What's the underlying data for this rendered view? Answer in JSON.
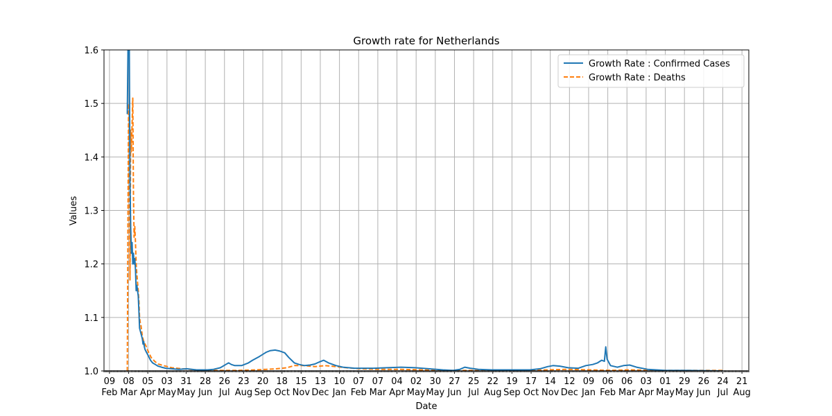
{
  "chart_data": {
    "type": "line",
    "title": "Growth rate for Netherlands",
    "xlabel": "Date",
    "ylabel": "Values",
    "ylim": [
      1.0,
      1.6
    ],
    "yticks": [
      "1.0",
      "1.1",
      "1.2",
      "1.3",
      "1.4",
      "1.5",
      "1.6"
    ],
    "xlim": [
      "2020-02-01",
      "2022-08-31"
    ],
    "xticks": [
      {
        "date": "2020-02-09",
        "day": "09",
        "month": "Feb"
      },
      {
        "date": "2020-03-08",
        "day": "08",
        "month": "Mar"
      },
      {
        "date": "2020-04-05",
        "day": "05",
        "month": "Apr"
      },
      {
        "date": "2020-05-03",
        "day": "03",
        "month": "May"
      },
      {
        "date": "2020-05-31",
        "day": "31",
        "month": "May"
      },
      {
        "date": "2020-06-28",
        "day": "28",
        "month": "Jun"
      },
      {
        "date": "2020-07-26",
        "day": "26",
        "month": "Jul"
      },
      {
        "date": "2020-08-23",
        "day": "23",
        "month": "Aug"
      },
      {
        "date": "2020-09-20",
        "day": "20",
        "month": "Sep"
      },
      {
        "date": "2020-10-18",
        "day": "18",
        "month": "Oct"
      },
      {
        "date": "2020-11-15",
        "day": "15",
        "month": "Nov"
      },
      {
        "date": "2020-12-13",
        "day": "13",
        "month": "Dec"
      },
      {
        "date": "2021-01-10",
        "day": "10",
        "month": "Jan"
      },
      {
        "date": "2021-02-07",
        "day": "07",
        "month": "Feb"
      },
      {
        "date": "2021-03-07",
        "day": "07",
        "month": "Mar"
      },
      {
        "date": "2021-04-04",
        "day": "04",
        "month": "Apr"
      },
      {
        "date": "2021-05-02",
        "day": "02",
        "month": "May"
      },
      {
        "date": "2021-05-30",
        "day": "30",
        "month": "May"
      },
      {
        "date": "2021-06-27",
        "day": "27",
        "month": "Jun"
      },
      {
        "date": "2021-07-25",
        "day": "25",
        "month": "Jul"
      },
      {
        "date": "2021-08-22",
        "day": "22",
        "month": "Aug"
      },
      {
        "date": "2021-09-19",
        "day": "19",
        "month": "Sep"
      },
      {
        "date": "2021-10-17",
        "day": "17",
        "month": "Oct"
      },
      {
        "date": "2021-11-14",
        "day": "14",
        "month": "Nov"
      },
      {
        "date": "2021-12-12",
        "day": "12",
        "month": "Dec"
      },
      {
        "date": "2022-01-09",
        "day": "09",
        "month": "Jan"
      },
      {
        "date": "2022-02-06",
        "day": "06",
        "month": "Feb"
      },
      {
        "date": "2022-03-06",
        "day": "06",
        "month": "Mar"
      },
      {
        "date": "2022-04-03",
        "day": "03",
        "month": "Apr"
      },
      {
        "date": "2022-05-01",
        "day": "01",
        "month": "May"
      },
      {
        "date": "2022-05-29",
        "day": "29",
        "month": "May"
      },
      {
        "date": "2022-06-26",
        "day": "26",
        "month": "Jun"
      },
      {
        "date": "2022-07-24",
        "day": "24",
        "month": "Jul"
      },
      {
        "date": "2022-08-21",
        "day": "21",
        "month": "Aug"
      }
    ],
    "grid": true,
    "legend_position": "top-right",
    "series": [
      {
        "name": "Growth Rate : Confirmed Cases",
        "color": "#1f77b4",
        "style": "solid",
        "points": [
          [
            "2020-03-06",
            1.48
          ],
          [
            "2020-03-07",
            1.6
          ],
          [
            "2020-03-08",
            1.6
          ],
          [
            "2020-03-09",
            1.6
          ],
          [
            "2020-03-10",
            1.35
          ],
          [
            "2020-03-11",
            1.27
          ],
          [
            "2020-03-12",
            1.22
          ],
          [
            "2020-03-13",
            1.24
          ],
          [
            "2020-03-14",
            1.2
          ],
          [
            "2020-03-15",
            1.22
          ],
          [
            "2020-03-16",
            1.2
          ],
          [
            "2020-03-17",
            1.21
          ],
          [
            "2020-03-18",
            1.19
          ],
          [
            "2020-03-19",
            1.15
          ],
          [
            "2020-03-20",
            1.16
          ],
          [
            "2020-03-21",
            1.15
          ],
          [
            "2020-03-22",
            1.14
          ],
          [
            "2020-03-23",
            1.11
          ],
          [
            "2020-03-24",
            1.08
          ],
          [
            "2020-03-25",
            1.075
          ],
          [
            "2020-03-26",
            1.07
          ],
          [
            "2020-03-27",
            1.065
          ],
          [
            "2020-03-28",
            1.06
          ],
          [
            "2020-03-29",
            1.05
          ],
          [
            "2020-03-30",
            1.055
          ],
          [
            "2020-03-31",
            1.045
          ],
          [
            "2020-04-01",
            1.04
          ],
          [
            "2020-04-03",
            1.035
          ],
          [
            "2020-04-05",
            1.03
          ],
          [
            "2020-04-07",
            1.025
          ],
          [
            "2020-04-09",
            1.02
          ],
          [
            "2020-04-12",
            1.015
          ],
          [
            "2020-04-16",
            1.012
          ],
          [
            "2020-04-20",
            1.009
          ],
          [
            "2020-04-25",
            1.007
          ],
          [
            "2020-05-01",
            1.005
          ],
          [
            "2020-05-10",
            1.004
          ],
          [
            "2020-05-20",
            1.003
          ],
          [
            "2020-06-01",
            1.004
          ],
          [
            "2020-06-15",
            1.002
          ],
          [
            "2020-07-01",
            1.002
          ],
          [
            "2020-07-10",
            1.003
          ],
          [
            "2020-07-20",
            1.006
          ],
          [
            "2020-07-28",
            1.012
          ],
          [
            "2020-08-01",
            1.015
          ],
          [
            "2020-08-05",
            1.012
          ],
          [
            "2020-08-10",
            1.01
          ],
          [
            "2020-08-20",
            1.01
          ],
          [
            "2020-08-30",
            1.015
          ],
          [
            "2020-09-05",
            1.02
          ],
          [
            "2020-09-15",
            1.027
          ],
          [
            "2020-09-25",
            1.035
          ],
          [
            "2020-10-01",
            1.038
          ],
          [
            "2020-10-08",
            1.039
          ],
          [
            "2020-10-15",
            1.037
          ],
          [
            "2020-10-22",
            1.034
          ],
          [
            "2020-10-28",
            1.025
          ],
          [
            "2020-11-05",
            1.015
          ],
          [
            "2020-11-12",
            1.012
          ],
          [
            "2020-11-20",
            1.01
          ],
          [
            "2020-11-28",
            1.011
          ],
          [
            "2020-12-05",
            1.013
          ],
          [
            "2020-12-12",
            1.017
          ],
          [
            "2020-12-18",
            1.02
          ],
          [
            "2020-12-25",
            1.015
          ],
          [
            "2021-01-05",
            1.01
          ],
          [
            "2021-01-15",
            1.007
          ],
          [
            "2021-02-01",
            1.005
          ],
          [
            "2021-03-01",
            1.005
          ],
          [
            "2021-03-20",
            1.006
          ],
          [
            "2021-04-10",
            1.007
          ],
          [
            "2021-05-01",
            1.006
          ],
          [
            "2021-05-20",
            1.004
          ],
          [
            "2021-06-10",
            1.002
          ],
          [
            "2021-06-25",
            1.001
          ],
          [
            "2021-07-05",
            1.003
          ],
          [
            "2021-07-12",
            1.007
          ],
          [
            "2021-07-20",
            1.005
          ],
          [
            "2021-08-01",
            1.003
          ],
          [
            "2021-08-20",
            1.002
          ],
          [
            "2021-09-15",
            1.002
          ],
          [
            "2021-10-15",
            1.002
          ],
          [
            "2021-10-30",
            1.004
          ],
          [
            "2021-11-10",
            1.008
          ],
          [
            "2021-11-18",
            1.01
          ],
          [
            "2021-11-28",
            1.009
          ],
          [
            "2021-12-10",
            1.006
          ],
          [
            "2021-12-25",
            1.005
          ],
          [
            "2022-01-05",
            1.01
          ],
          [
            "2022-01-15",
            1.012
          ],
          [
            "2022-01-22",
            1.015
          ],
          [
            "2022-01-28",
            1.02
          ],
          [
            "2022-02-01",
            1.018
          ],
          [
            "2022-02-03",
            1.045
          ],
          [
            "2022-02-05",
            1.022
          ],
          [
            "2022-02-10",
            1.01
          ],
          [
            "2022-02-20",
            1.007
          ],
          [
            "2022-03-01",
            1.01
          ],
          [
            "2022-03-10",
            1.011
          ],
          [
            "2022-03-20",
            1.007
          ],
          [
            "2022-04-05",
            1.003
          ],
          [
            "2022-05-01",
            1.001
          ],
          [
            "2022-06-01",
            1.001
          ],
          [
            "2022-07-24",
            1.0
          ]
        ]
      },
      {
        "name": "Growth Rate : Deaths",
        "color": "#ff7f0e",
        "style": "dashed",
        "points": [
          [
            "2020-03-06",
            1.0
          ],
          [
            "2020-03-07",
            1.3
          ],
          [
            "2020-03-08",
            1.5
          ],
          [
            "2020-03-09",
            1.4
          ],
          [
            "2020-03-10",
            1.17
          ],
          [
            "2020-03-11",
            1.45
          ],
          [
            "2020-03-12",
            1.41
          ],
          [
            "2020-03-13",
            1.46
          ],
          [
            "2020-03-14",
            1.51
          ],
          [
            "2020-03-15",
            1.33
          ],
          [
            "2020-03-16",
            1.25
          ],
          [
            "2020-03-17",
            1.27
          ],
          [
            "2020-03-18",
            1.24
          ],
          [
            "2020-03-19",
            1.2
          ],
          [
            "2020-03-20",
            1.18
          ],
          [
            "2020-03-21",
            1.165
          ],
          [
            "2020-03-22",
            1.15
          ],
          [
            "2020-03-23",
            1.13
          ],
          [
            "2020-03-24",
            1.1
          ],
          [
            "2020-03-25",
            1.09
          ],
          [
            "2020-03-26",
            1.085
          ],
          [
            "2020-03-27",
            1.075
          ],
          [
            "2020-03-28",
            1.065
          ],
          [
            "2020-03-29",
            1.06
          ],
          [
            "2020-03-30",
            1.055
          ],
          [
            "2020-04-01",
            1.05
          ],
          [
            "2020-04-03",
            1.045
          ],
          [
            "2020-04-06",
            1.035
          ],
          [
            "2020-04-10",
            1.025
          ],
          [
            "2020-04-15",
            1.018
          ],
          [
            "2020-04-20",
            1.013
          ],
          [
            "2020-04-28",
            1.01
          ],
          [
            "2020-05-10",
            1.006
          ],
          [
            "2020-05-25",
            1.004
          ],
          [
            "2020-06-15",
            1.002
          ],
          [
            "2020-07-15",
            1.001
          ],
          [
            "2020-08-15",
            1.001
          ],
          [
            "2020-09-10",
            1.002
          ],
          [
            "2020-09-25",
            1.003
          ],
          [
            "2020-10-10",
            1.004
          ],
          [
            "2020-10-25",
            1.006
          ],
          [
            "2020-11-05",
            1.01
          ],
          [
            "2020-11-20",
            1.01
          ],
          [
            "2020-12-05",
            1.008
          ],
          [
            "2020-12-20",
            1.01
          ],
          [
            "2021-01-05",
            1.008
          ],
          [
            "2021-01-20",
            1.006
          ],
          [
            "2021-02-10",
            1.004
          ],
          [
            "2021-03-10",
            1.003
          ],
          [
            "2021-04-10",
            1.003
          ],
          [
            "2021-05-10",
            1.002
          ],
          [
            "2021-06-10",
            1.001
          ],
          [
            "2021-07-10",
            1.001
          ],
          [
            "2021-08-10",
            1.001
          ],
          [
            "2021-09-10",
            1.001
          ],
          [
            "2021-10-10",
            1.001
          ],
          [
            "2021-11-10",
            1.002
          ],
          [
            "2021-12-10",
            1.003
          ],
          [
            "2022-01-10",
            1.002
          ],
          [
            "2022-02-10",
            1.001
          ],
          [
            "2022-03-10",
            1.002
          ],
          [
            "2022-04-10",
            1.001
          ],
          [
            "2022-05-10",
            1.001
          ],
          [
            "2022-06-10",
            1.001
          ],
          [
            "2022-07-24",
            1.001
          ]
        ]
      }
    ]
  }
}
